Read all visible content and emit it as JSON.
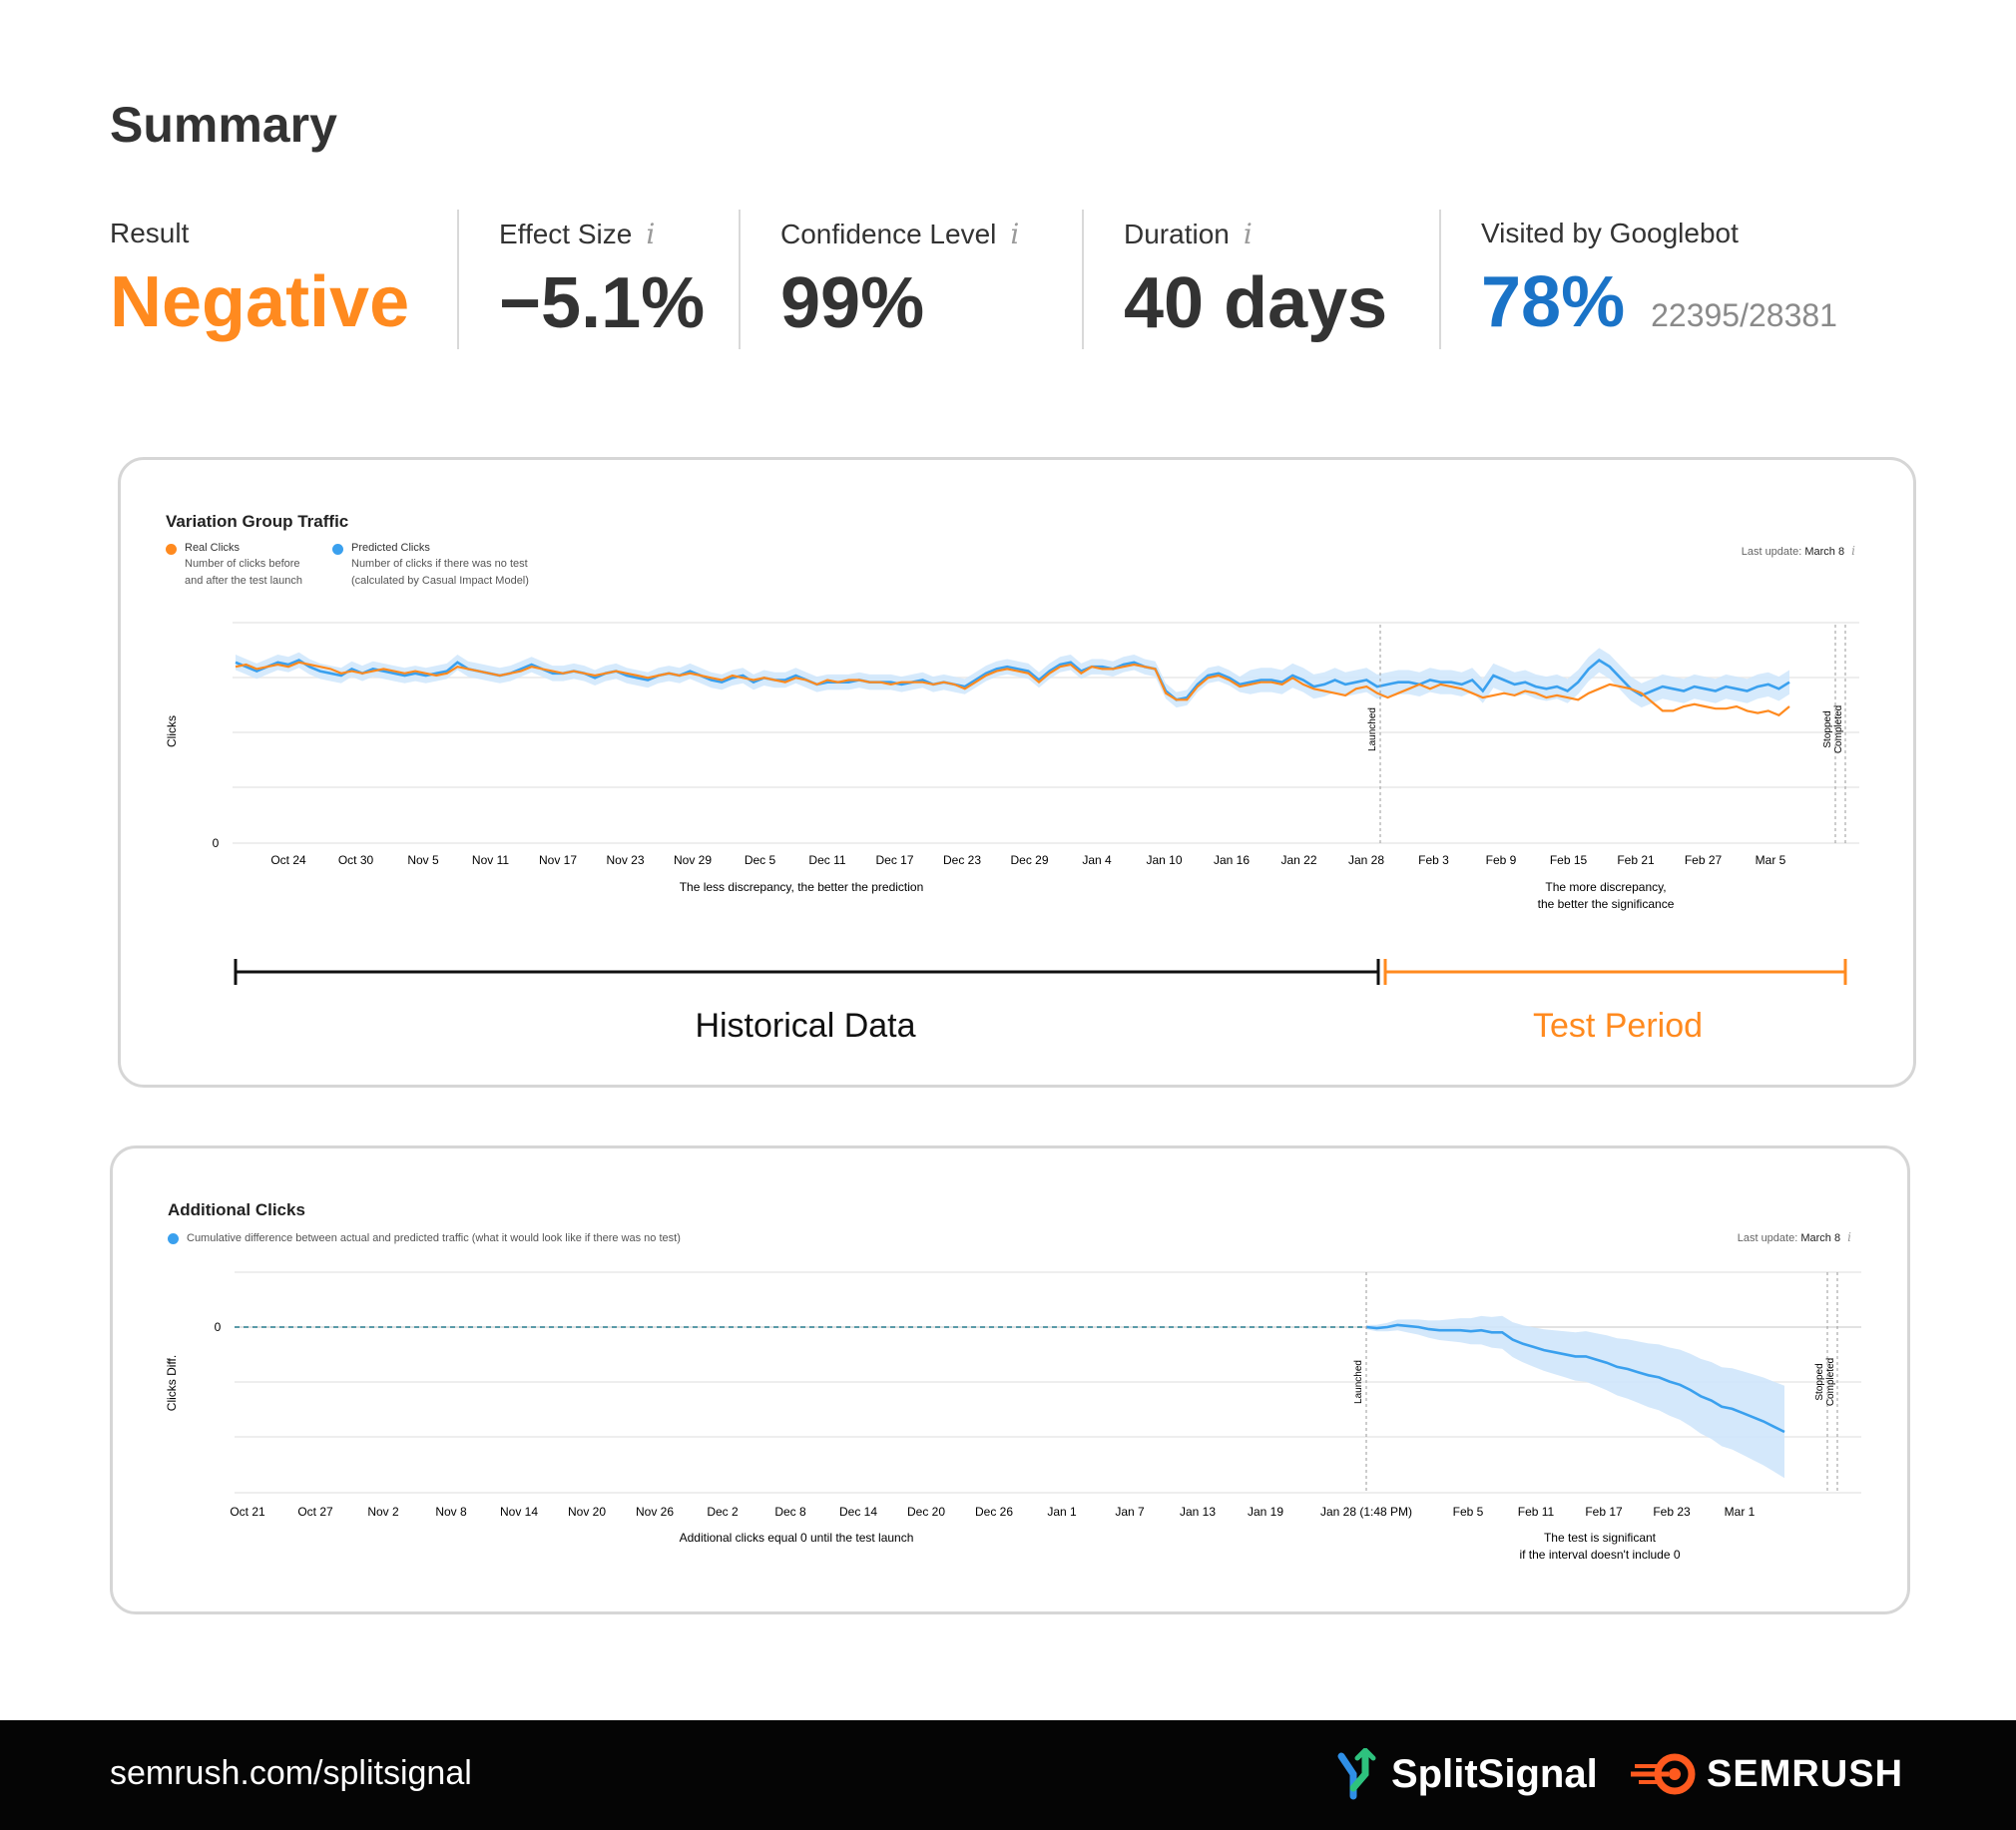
{
  "summary": {
    "title": "Summary",
    "metrics": [
      {
        "label": "Result",
        "value": "Negative",
        "color": "#ff8a1f",
        "info": false
      },
      {
        "label": "Effect Size",
        "value": "−5.1%",
        "color": "#333333",
        "info": true
      },
      {
        "label": "Confidence Level",
        "value": "99%",
        "color": "#333333",
        "info": true
      },
      {
        "label": "Duration",
        "value": "40 days",
        "color": "#333333",
        "info": true
      },
      {
        "label": "Visited by Googlebot",
        "value": "78%",
        "color": "#1a73c7",
        "info": false,
        "sub": "22395/28381"
      }
    ],
    "info_glyph": "i"
  },
  "traffic_chart": {
    "title": "Variation Group Traffic",
    "last_update_label": "Last update:",
    "last_update_value": "March 8",
    "legend": [
      {
        "name": "Real Clicks",
        "color": "#ff8a1f",
        "desc1": "Number of clicks before",
        "desc2": "and after the test launch"
      },
      {
        "name": "Predicted Clicks",
        "color": "#3aa0ee",
        "desc1": "Number of clicks if there was no test",
        "desc2": "(calculated by Casual Impact Model)"
      }
    ],
    "ylabel": "Clicks",
    "y_zero": "0",
    "ticks": [
      "Oct 24",
      "Oct 30",
      "Nov 5",
      "Nov 11",
      "Nov 17",
      "Nov 23",
      "Nov 29",
      "Dec 5",
      "Dec 11",
      "Dec 17",
      "Dec 23",
      "Dec 29",
      "Jan 4",
      "Jan 10",
      "Jan 16",
      "Jan 22",
      "Jan 28",
      "Feb 3",
      "Feb 9",
      "Feb 15",
      "Feb 21",
      "Feb 27",
      "Mar 5"
    ],
    "marker_launched": "Launched",
    "marker_stopped": "Stopped",
    "marker_completed": "Completed",
    "note_left": "The less discrepancy, the better the prediction",
    "note_right_1": "The more discrepancy,",
    "note_right_2": "the better the significance",
    "historical_label": "Historical Data",
    "test_label": "Test Period"
  },
  "clicks_chart": {
    "title": "Additional Clicks",
    "last_update_label": "Last update:",
    "last_update_value": "March 8",
    "legend_desc": "Cumulative difference between actual and predicted traffic (what it would look like if there was no test)",
    "ylabel": "Clicks Diff.",
    "y_zero": "0",
    "ticks": [
      "Oct 21",
      "Oct 27",
      "Nov 2",
      "Nov 8",
      "Nov 14",
      "Nov 20",
      "Nov 26",
      "Dec 2",
      "Dec 8",
      "Dec 14",
      "Dec 20",
      "Dec 26",
      "Jan 1",
      "Jan 7",
      "Jan 13",
      "Jan 19",
      "Jan 28 (1:48 PM)",
      "Feb 5",
      "Feb 11",
      "Feb 17",
      "Feb 23",
      "Mar 1"
    ],
    "marker_launched": "Launched",
    "marker_stopped": "Stopped",
    "marker_completed": "Completed",
    "note_left": "Additional clicks equal 0 until the test launch",
    "note_right_1": "The test is significant",
    "note_right_2": "if the interval doesn't include 0"
  },
  "chart_data": [
    {
      "type": "line",
      "title": "Variation Group Traffic",
      "ylabel": "Clicks",
      "series": [
        {
          "name": "Real Clicks",
          "color": "#ff8a1f",
          "values": [
            0.8,
            0.81,
            0.79,
            0.8,
            0.81,
            0.8,
            0.82,
            0.81,
            0.8,
            0.79,
            0.77,
            0.78,
            0.77,
            0.78,
            0.79,
            0.78,
            0.77,
            0.78,
            0.77,
            0.76,
            0.77,
            0.8,
            0.79,
            0.78,
            0.77,
            0.76,
            0.77,
            0.78,
            0.8,
            0.79,
            0.78,
            0.77,
            0.78,
            0.77,
            0.76,
            0.77,
            0.78,
            0.77,
            0.76,
            0.75,
            0.76,
            0.77,
            0.76,
            0.77,
            0.76,
            0.75,
            0.74,
            0.76,
            0.75,
            0.74,
            0.75,
            0.74,
            0.73,
            0.75,
            0.74,
            0.72,
            0.74,
            0.73,
            0.74,
            0.74,
            0.73,
            0.73,
            0.72,
            0.73,
            0.73,
            0.73,
            0.72,
            0.73,
            0.72,
            0.7,
            0.73,
            0.76,
            0.78,
            0.79,
            0.78,
            0.77,
            0.73,
            0.77,
            0.8,
            0.81,
            0.77,
            0.8,
            0.79,
            0.79,
            0.8,
            0.81,
            0.8,
            0.79,
            0.68,
            0.65,
            0.65,
            0.71,
            0.75,
            0.76,
            0.74,
            0.71,
            0.72,
            0.73,
            0.73,
            0.72,
            0.75,
            0.72,
            0.7,
            0.69,
            0.68,
            0.67,
            0.7,
            0.71,
            0.68,
            0.66,
            0.68,
            0.7,
            0.72,
            0.7,
            0.72,
            0.71,
            0.7,
            0.68,
            0.66,
            0.67,
            0.68,
            0.67,
            0.69,
            0.68,
            0.66,
            0.67,
            0.66,
            0.65,
            0.68,
            0.7,
            0.72,
            0.71,
            0.7,
            0.68,
            0.64,
            0.6,
            0.6,
            0.62,
            0.63,
            0.62,
            0.61,
            0.61,
            0.62,
            0.6,
            0.59,
            0.6,
            0.58,
            0.62
          ]
        },
        {
          "name": "Predicted Clicks",
          "color": "#3aa0ee",
          "values": [
            0.82,
            0.8,
            0.78,
            0.8,
            0.82,
            0.81,
            0.83,
            0.8,
            0.78,
            0.77,
            0.76,
            0.79,
            0.77,
            0.79,
            0.78,
            0.77,
            0.76,
            0.77,
            0.76,
            0.77,
            0.78,
            0.82,
            0.79,
            0.78,
            0.77,
            0.76,
            0.77,
            0.79,
            0.81,
            0.79,
            0.77,
            0.77,
            0.78,
            0.77,
            0.75,
            0.77,
            0.78,
            0.76,
            0.75,
            0.74,
            0.76,
            0.77,
            0.76,
            0.78,
            0.76,
            0.74,
            0.73,
            0.75,
            0.76,
            0.73,
            0.75,
            0.74,
            0.74,
            0.76,
            0.74,
            0.72,
            0.73,
            0.73,
            0.73,
            0.74,
            0.73,
            0.73,
            0.73,
            0.72,
            0.73,
            0.74,
            0.72,
            0.73,
            0.72,
            0.71,
            0.74,
            0.77,
            0.79,
            0.8,
            0.79,
            0.78,
            0.74,
            0.78,
            0.81,
            0.82,
            0.78,
            0.8,
            0.8,
            0.79,
            0.81,
            0.82,
            0.8,
            0.79,
            0.69,
            0.65,
            0.66,
            0.72,
            0.76,
            0.77,
            0.75,
            0.72,
            0.73,
            0.74,
            0.74,
            0.73,
            0.76,
            0.74,
            0.71,
            0.72,
            0.74,
            0.72,
            0.73,
            0.74,
            0.71,
            0.72,
            0.73,
            0.73,
            0.72,
            0.74,
            0.73,
            0.73,
            0.72,
            0.74,
            0.69,
            0.76,
            0.74,
            0.72,
            0.73,
            0.71,
            0.7,
            0.71,
            0.69,
            0.73,
            0.79,
            0.83,
            0.8,
            0.75,
            0.7,
            0.67,
            0.69,
            0.71,
            0.7,
            0.69,
            0.71,
            0.7,
            0.69,
            0.71,
            0.7,
            0.69,
            0.71,
            0.72,
            0.7,
            0.73
          ]
        }
      ]
    },
    {
      "type": "area",
      "title": "Additional Clicks",
      "ylabel": "Clicks Diff.",
      "series": [
        {
          "name": "Cumulative difference between actual and predicted traffic (what it would look like if there was no test)",
          "color": "#3aa0ee",
          "values": [
            0.0,
            -0.01,
            0.0,
            0.02,
            0.01,
            0.0,
            -0.02,
            -0.03,
            -0.03,
            -0.03,
            -0.04,
            -0.03,
            -0.05,
            -0.05,
            -0.12,
            -0.16,
            -0.19,
            -0.22,
            -0.24,
            -0.26,
            -0.28,
            -0.28,
            -0.31,
            -0.34,
            -0.38,
            -0.4,
            -0.43,
            -0.46,
            -0.48,
            -0.52,
            -0.55,
            -0.6,
            -0.66,
            -0.7,
            -0.76,
            -0.78,
            -0.82,
            -0.86,
            -0.9,
            -0.95,
            -1.0
          ]
        }
      ]
    }
  ]
}
